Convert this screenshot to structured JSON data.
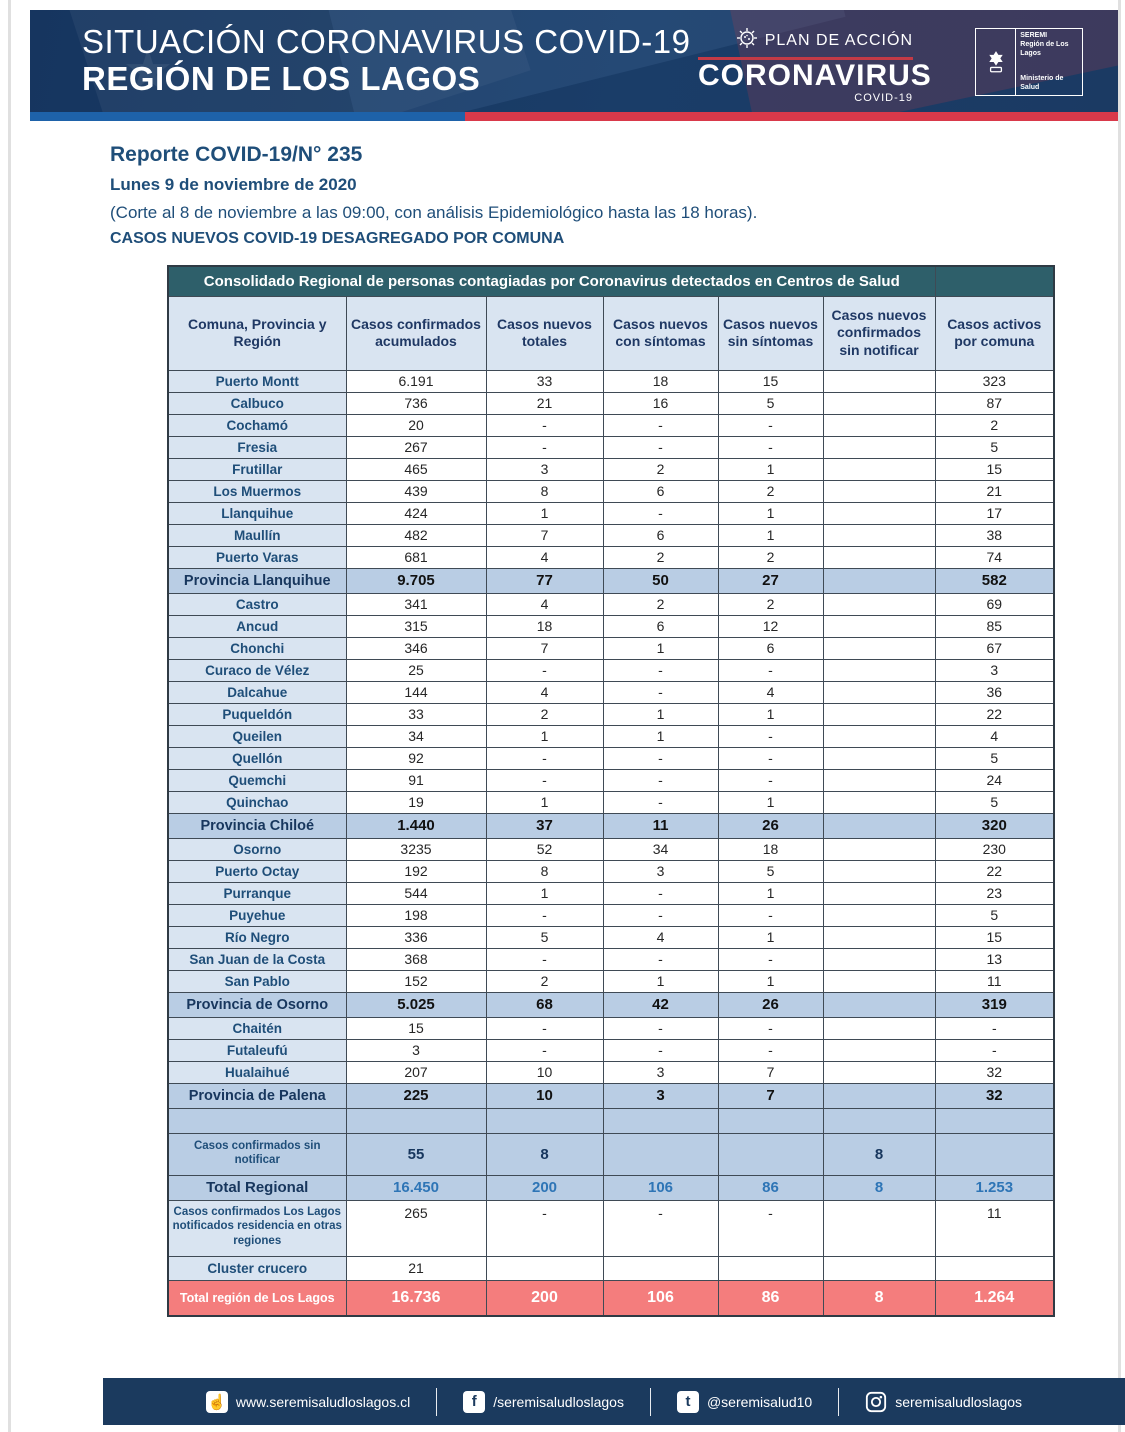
{
  "banner": {
    "title_line1": "SITUACIÓN CORONAVIRUS COVID-19",
    "title_line2": "REGIÓN DE LOS LAGOS",
    "plan_label": "PLAN DE ACCIÓN",
    "coronavirus_label": "CORONAVIRUS",
    "covid_label": "COVID-19",
    "seremi_line1": "SEREMI",
    "seremi_line2": "Región de Los Lagos",
    "ministerio": "Ministerio de Salud"
  },
  "report": {
    "title": "Reporte COVID-19/N° 235",
    "date": "Lunes 9 de noviembre de 2020",
    "note": "(Corte al 8 de noviembre a las 09:00, con análisis Epidemiológico hasta las 18 horas).",
    "subtitle": "CASOS NUEVOS COVID-19 DESAGREGADO POR COMUNA"
  },
  "table": {
    "title": "Consolidado Regional de personas contagiadas por Coronavirus detectados en Centros de Salud",
    "columns": [
      "Comuna, Provincia y Región",
      "Casos confirmados acumulados",
      "Casos nuevos totales",
      "Casos nuevos con síntomas",
      "Casos nuevos sin síntomas",
      "Casos nuevos confirmados sin notificar",
      "Casos activos por comuna"
    ],
    "rows": [
      {
        "label": "Puerto Montt",
        "type": "commune",
        "values": [
          "6.191",
          "33",
          "18",
          "15",
          "",
          "323"
        ]
      },
      {
        "label": "Calbuco",
        "type": "commune",
        "values": [
          "736",
          "21",
          "16",
          "5",
          "",
          "87"
        ]
      },
      {
        "label": "Cochamó",
        "type": "commune",
        "values": [
          "20",
          "-",
          "-",
          "-",
          "",
          "2"
        ]
      },
      {
        "label": "Fresia",
        "type": "commune",
        "values": [
          "267",
          "-",
          "-",
          "-",
          "",
          "5"
        ]
      },
      {
        "label": "Frutillar",
        "type": "commune",
        "values": [
          "465",
          "3",
          "2",
          "1",
          "",
          "15"
        ]
      },
      {
        "label": "Los Muermos",
        "type": "commune",
        "values": [
          "439",
          "8",
          "6",
          "2",
          "",
          "21"
        ]
      },
      {
        "label": "Llanquihue",
        "type": "commune",
        "values": [
          "424",
          "1",
          "-",
          "1",
          "",
          "17"
        ]
      },
      {
        "label": "Maullín",
        "type": "commune",
        "values": [
          "482",
          "7",
          "6",
          "1",
          "",
          "38"
        ]
      },
      {
        "label": "Puerto Varas",
        "type": "commune",
        "values": [
          "681",
          "4",
          "2",
          "2",
          "",
          "74"
        ]
      },
      {
        "label": "Provincia Llanquihue",
        "type": "province",
        "values": [
          "9.705",
          "77",
          "50",
          "27",
          "",
          "582"
        ]
      },
      {
        "label": "Castro",
        "type": "commune",
        "values": [
          "341",
          "4",
          "2",
          "2",
          "",
          "69"
        ]
      },
      {
        "label": "Ancud",
        "type": "commune",
        "values": [
          "315",
          "18",
          "6",
          "12",
          "",
          "85"
        ]
      },
      {
        "label": "Chonchi",
        "type": "commune",
        "values": [
          "346",
          "7",
          "1",
          "6",
          "",
          "67"
        ]
      },
      {
        "label": "Curaco de Vélez",
        "type": "commune",
        "values": [
          "25",
          "-",
          "-",
          "-",
          "",
          "3"
        ]
      },
      {
        "label": "Dalcahue",
        "type": "commune",
        "values": [
          "144",
          "4",
          "-",
          "4",
          "",
          "36"
        ]
      },
      {
        "label": "Puqueldón",
        "type": "commune",
        "values": [
          "33",
          "2",
          "1",
          "1",
          "",
          "22"
        ]
      },
      {
        "label": "Queilen",
        "type": "commune",
        "values": [
          "34",
          "1",
          "1",
          "-",
          "",
          "4"
        ]
      },
      {
        "label": "Quellón",
        "type": "commune",
        "values": [
          "92",
          "-",
          "-",
          "-",
          "",
          "5"
        ]
      },
      {
        "label": "Quemchi",
        "type": "commune",
        "values": [
          "91",
          "-",
          "-",
          "-",
          "",
          "24"
        ]
      },
      {
        "label": "Quinchao",
        "type": "commune",
        "values": [
          "19",
          "1",
          "-",
          "1",
          "",
          "5"
        ]
      },
      {
        "label": "Provincia Chiloé",
        "type": "province",
        "values": [
          "1.440",
          "37",
          "11",
          "26",
          "",
          "320"
        ]
      },
      {
        "label": "Osorno",
        "type": "commune",
        "values": [
          "3235",
          "52",
          "34",
          "18",
          "",
          "230"
        ]
      },
      {
        "label": "Puerto Octay",
        "type": "commune",
        "values": [
          "192",
          "8",
          "3",
          "5",
          "",
          "22"
        ]
      },
      {
        "label": "Purranque",
        "type": "commune",
        "values": [
          "544",
          "1",
          "-",
          "1",
          "",
          "23"
        ]
      },
      {
        "label": "Puyehue",
        "type": "commune",
        "values": [
          "198",
          "-",
          "-",
          "-",
          "",
          "5"
        ]
      },
      {
        "label": "Río Negro",
        "type": "commune",
        "values": [
          "336",
          "5",
          "4",
          "1",
          "",
          "15"
        ]
      },
      {
        "label": "San Juan de la Costa",
        "type": "commune",
        "values": [
          "368",
          "-",
          "-",
          "-",
          "",
          "13"
        ]
      },
      {
        "label": "San Pablo",
        "type": "commune",
        "values": [
          "152",
          "2",
          "1",
          "1",
          "",
          "11"
        ]
      },
      {
        "label": "Provincia de Osorno",
        "type": "province",
        "values": [
          "5.025",
          "68",
          "42",
          "26",
          "",
          "319"
        ]
      },
      {
        "label": "Chaitén",
        "type": "commune",
        "values": [
          "15",
          "-",
          "-",
          "-",
          "",
          "-"
        ]
      },
      {
        "label": "Futaleufú",
        "type": "commune",
        "values": [
          "3",
          "-",
          "-",
          "-",
          "",
          "-"
        ]
      },
      {
        "label": "Hualaihué",
        "type": "commune",
        "values": [
          "207",
          "10",
          "3",
          "7",
          "",
          "32"
        ]
      },
      {
        "label": "Provincia de Palena",
        "type": "province",
        "values": [
          "225",
          "10",
          "3",
          "7",
          "",
          "32"
        ]
      },
      {
        "label": "",
        "type": "spacer",
        "values": [
          "",
          "",
          "",
          "",
          "",
          ""
        ]
      },
      {
        "label": "Casos confirmados sin notificar",
        "type": "notify",
        "values": [
          "55",
          "8",
          "",
          "",
          "8",
          ""
        ]
      },
      {
        "label": "Total Regional",
        "type": "total-regional",
        "values": [
          "16.450",
          "200",
          "106",
          "86",
          "8",
          "1.253"
        ]
      },
      {
        "label": "Casos confirmados Los Lagos notificados residencia en otras regiones",
        "type": "other-regions",
        "values": [
          "265",
          "-",
          "-",
          "-",
          "",
          "11"
        ]
      },
      {
        "label": "Cluster crucero",
        "type": "cluster",
        "values": [
          "21",
          "",
          "",
          "",
          "",
          ""
        ]
      },
      {
        "label": "Total región de Los Lagos",
        "type": "grand-total",
        "values": [
          "16.736",
          "200",
          "106",
          "86",
          "8",
          "1.264"
        ]
      }
    ]
  },
  "footer": {
    "items": [
      {
        "icon": "website",
        "glyph": "☝",
        "label": "www.seremisaludloslagos.cl"
      },
      {
        "icon": "facebook",
        "glyph": "f",
        "label": "/seremisaludloslagos"
      },
      {
        "icon": "twitter",
        "glyph": "t",
        "label": "@seremisalud10"
      },
      {
        "icon": "instagram",
        "glyph": "",
        "label": "seremisaludloslagos"
      }
    ]
  },
  "colors": {
    "banner_navy": "#16355f",
    "stripe_blue": "#1e62a9",
    "stripe_red": "#d9394a",
    "table_header_teal": "#2e5f6a",
    "header_light_blue": "#d9e4f1",
    "province_blue": "#b9cde4",
    "total_regional_text": "#2e75b6",
    "grand_total_red": "#f47d7d",
    "footer_navy": "#1b3a5e",
    "heading_blue": "#1f4e79"
  }
}
